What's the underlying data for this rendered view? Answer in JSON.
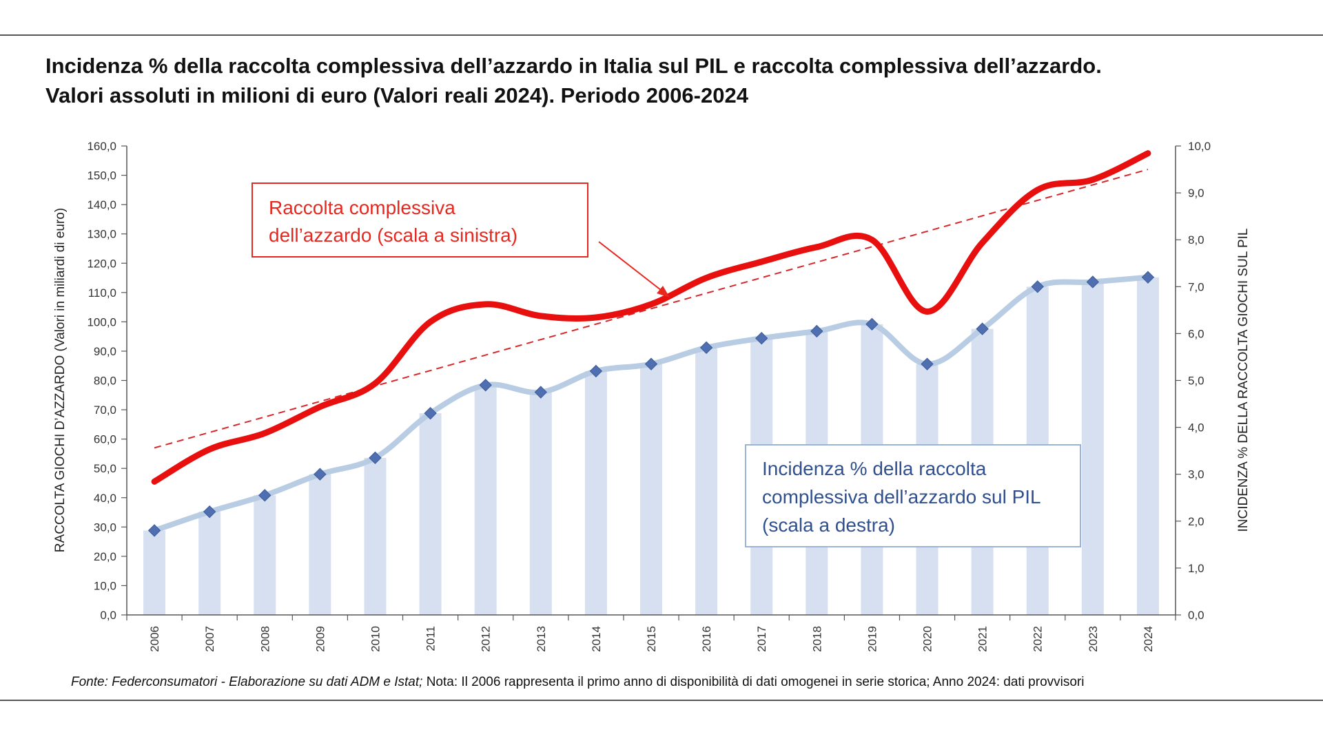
{
  "title": {
    "line1": "Incidenza % della raccolta complessiva dell’azzardo in Italia sul PIL e raccolta complessiva dell’azzardo.",
    "line2": "Valori assoluti in milioni di euro (Valori reali 2024). Periodo 2006-2024"
  },
  "source": {
    "italic_part": "Fonte: Federconsumatori - Elaborazione su dati ADM e Istat;",
    "note_part": " Nota: Il 2006 rappresenta il primo anno di disponibilità di dati omogenei in serie storica; Anno 2024: dati provvisori"
  },
  "colors": {
    "raccolta_line": "#e8100f",
    "trend_line": "#d9262a",
    "bars": "#d6e0f0",
    "incidenza_line": "#b8cce4",
    "markers": "#4f6fb0",
    "label_box_red": "#e8271f",
    "label_box_blue": "#9ab3d8",
    "blue_text": "#2f4f8f",
    "axis": "#555555"
  },
  "chart_data": {
    "type": "bar",
    "categories": [
      "2006",
      "2007",
      "2008",
      "2009",
      "2010",
      "2011",
      "2012",
      "2013",
      "2014",
      "2015",
      "2016",
      "2017",
      "2018",
      "2019",
      "2020",
      "2021",
      "2022",
      "2023",
      "2024"
    ],
    "y_left": {
      "label": "RACCOLTA GIOCHI D’AZZARDO (Valori in miliardi di euro)",
      "min": 0,
      "max": 160,
      "step": 10,
      "ticks": [
        "0,0",
        "10,0",
        "20,0",
        "30,0",
        "40,0",
        "50,0",
        "60,0",
        "70,0",
        "80,0",
        "90,0",
        "100,0",
        "110,0",
        "120,0",
        "130,0",
        "140,0",
        "150,0",
        "160,0"
      ]
    },
    "y_right": {
      "label": "INCIDENZA % DELLA RACCOLTA GIOCHI SUL PIL",
      "min": 0,
      "max": 10,
      "step": 1,
      "ticks": [
        "0,0",
        "1,0",
        "2,0",
        "3,0",
        "4,0",
        "5,0",
        "6,0",
        "7,0",
        "8,0",
        "9,0",
        "10,0"
      ]
    },
    "series": [
      {
        "name": "Raccolta complessiva dell’azzardo (scala a sinistra)",
        "type": "line",
        "axis": "left",
        "values": [
          45.5,
          56.5,
          62,
          71,
          79,
          100,
          106,
          102,
          101.5,
          106,
          115,
          120.5,
          125.5,
          128,
          103.5,
          127,
          145,
          148.5,
          157.5
        ]
      },
      {
        "name": "Incidenza % della raccolta complessiva dell’azzardo sul PIL (scala a destra)",
        "type": "bar+line",
        "axis": "right",
        "values": [
          1.8,
          2.2,
          2.55,
          3.0,
          3.35,
          4.3,
          4.9,
          4.75,
          5.2,
          5.35,
          5.7,
          5.9,
          6.05,
          6.2,
          5.35,
          6.1,
          7.0,
          7.1,
          7.2
        ]
      }
    ],
    "trendline": {
      "axis": "left",
      "start": 57,
      "end": 152,
      "style": "dashed"
    },
    "annotations": {
      "red_box": [
        "Raccolta complessiva",
        "dell’azzardo (scala a sinistra)"
      ],
      "blue_box": [
        "Incidenza % della raccolta",
        "complessiva dell’azzardo sul PIL",
        "(scala a destra)"
      ]
    },
    "grid": false
  }
}
